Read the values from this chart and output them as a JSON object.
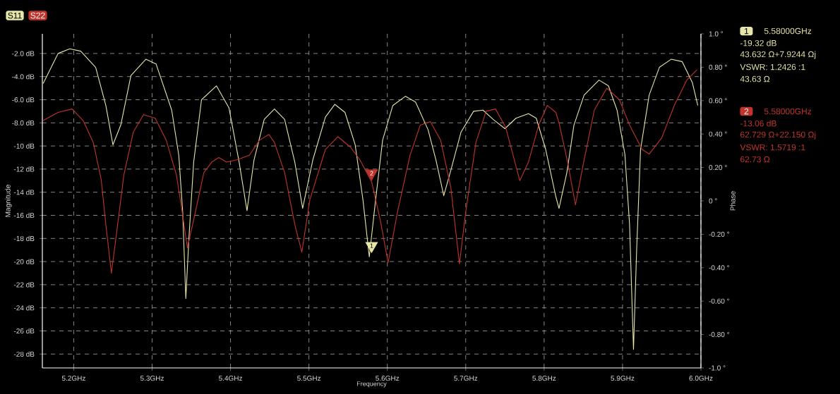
{
  "chart_data": {
    "type": "line",
    "xlabel": "Frequency",
    "ylabel": "Magnitude",
    "y2label": "Phase",
    "xlim": [
      5.16,
      6.0
    ],
    "ylim": [
      -29.2,
      -0.3
    ],
    "y2lim": [
      -1,
      1
    ],
    "xticks": [
      {
        "value": 5.2,
        "label": "5.2GHz"
      },
      {
        "value": 5.3,
        "label": "5.3GHz"
      },
      {
        "value": 5.4,
        "label": "5.4GHz"
      },
      {
        "value": 5.5,
        "label": "5.5GHz"
      },
      {
        "value": 5.6,
        "label": "5.6GHz"
      },
      {
        "value": 5.7,
        "label": "5.7GHz"
      },
      {
        "value": 5.8,
        "label": "5.8GHz"
      },
      {
        "value": 5.9,
        "label": "5.9GHz"
      },
      {
        "value": 6.0,
        "label": "6.0GHz"
      }
    ],
    "yticks": [
      {
        "value": -2,
        "label": "-2.0 dB"
      },
      {
        "value": -4,
        "label": "-4.0 dB"
      },
      {
        "value": -6,
        "label": "-6.0 dB"
      },
      {
        "value": -8,
        "label": "-8.0 dB"
      },
      {
        "value": -10,
        "label": "-10 dB"
      },
      {
        "value": -12,
        "label": "-12 dB"
      },
      {
        "value": -14,
        "label": "-14 dB"
      },
      {
        "value": -16,
        "label": "-16 dB"
      },
      {
        "value": -18,
        "label": "-18 dB"
      },
      {
        "value": -20,
        "label": "-20 dB"
      },
      {
        "value": -22,
        "label": "-22 dB"
      },
      {
        "value": -24,
        "label": "-24 dB"
      },
      {
        "value": -26,
        "label": "-26 dB"
      },
      {
        "value": -28,
        "label": "-28 dB"
      }
    ],
    "y2ticks": [
      {
        "value": 1.0,
        "label": "1.0 °"
      },
      {
        "value": 0.8,
        "label": "0.80 °"
      },
      {
        "value": 0.6,
        "label": "0.60 °"
      },
      {
        "value": 0.4,
        "label": "0.40 °"
      },
      {
        "value": 0.2,
        "label": "0.20 °"
      },
      {
        "value": 0,
        "label": "0 °"
      },
      {
        "value": -0.2,
        "label": "-0.20 °"
      },
      {
        "value": -0.4,
        "label": "-0.40 °"
      },
      {
        "value": -0.6,
        "label": "-0.60 °"
      },
      {
        "value": -0.8,
        "label": "-0.80 °"
      },
      {
        "value": -1.0,
        "label": "-1.0 °"
      }
    ],
    "grid": true,
    "legend": "top left",
    "series": [
      {
        "name": "S11",
        "color": "#e6e6a8",
        "x": [
          5.161,
          5.18,
          5.195,
          5.209,
          5.228,
          5.241,
          5.25,
          5.26,
          5.273,
          5.292,
          5.305,
          5.325,
          5.334,
          5.339,
          5.343,
          5.347,
          5.353,
          5.363,
          5.382,
          5.398,
          5.411,
          5.421,
          5.43,
          5.443,
          5.456,
          5.469,
          5.482,
          5.492,
          5.505,
          5.521,
          5.533,
          5.546,
          5.559,
          5.569,
          5.577,
          5.585,
          5.594,
          5.607,
          5.623,
          5.636,
          5.652,
          5.662,
          5.672,
          5.681,
          5.694,
          5.71,
          5.722,
          5.735,
          5.75,
          5.764,
          5.78,
          5.79,
          5.802,
          5.815,
          5.819,
          5.829,
          5.838,
          5.851,
          5.87,
          5.882,
          5.893,
          5.903,
          5.909,
          5.914,
          5.918,
          5.923,
          5.934,
          5.947,
          5.962,
          5.976,
          5.989,
          5.996
        ],
        "values": [
          -4.6,
          -2.0,
          -1.6,
          -1.8,
          -3.2,
          -6.5,
          -9.9,
          -8.2,
          -3.9,
          -2.5,
          -2.9,
          -6.9,
          -10.8,
          -15.7,
          -23.2,
          -17.9,
          -11.4,
          -6.0,
          -4.8,
          -6.7,
          -11.4,
          -15.6,
          -11.2,
          -7.7,
          -6.8,
          -7.7,
          -11.4,
          -15.4,
          -11.2,
          -7.5,
          -6.4,
          -7.1,
          -9.9,
          -14.7,
          -19.6,
          -14.7,
          -9.5,
          -6.5,
          -5.7,
          -6.2,
          -8.6,
          -11.2,
          -14.3,
          -12.1,
          -8.8,
          -7.0,
          -6.9,
          -7.7,
          -8.5,
          -7.6,
          -7.2,
          -7.6,
          -10.3,
          -14.4,
          -15.4,
          -12.3,
          -8.2,
          -5.6,
          -4.3,
          -4.8,
          -6.9,
          -10.7,
          -16.8,
          -27.6,
          -19.0,
          -10.3,
          -5.6,
          -3.2,
          -2.5,
          -2.7,
          -4.5,
          -6.5
        ]
      },
      {
        "name": "S22",
        "color": "#c0342c",
        "x": [
          5.161,
          5.18,
          5.198,
          5.212,
          5.225,
          5.235,
          5.241,
          5.248,
          5.254,
          5.264,
          5.276,
          5.289,
          5.304,
          5.318,
          5.331,
          5.337,
          5.345,
          5.353,
          5.366,
          5.376,
          5.385,
          5.395,
          5.408,
          5.424,
          5.437,
          5.449,
          5.456,
          5.469,
          5.482,
          5.491,
          5.501,
          5.521,
          5.537,
          5.553,
          5.565,
          5.58,
          5.591,
          5.601,
          5.613,
          5.629,
          5.642,
          5.655,
          5.668,
          5.681,
          5.692,
          5.7,
          5.713,
          5.726,
          5.738,
          5.751,
          5.769,
          5.78,
          5.793,
          5.804,
          5.815,
          5.819,
          5.83,
          5.84,
          5.851,
          5.864,
          5.88,
          5.896,
          5.909,
          5.925,
          5.934,
          5.95,
          5.966,
          5.982,
          5.995
        ],
        "values": [
          -7.8,
          -7.1,
          -6.8,
          -7.8,
          -9.7,
          -12.9,
          -16.8,
          -21.0,
          -17.9,
          -12.5,
          -8.8,
          -7.3,
          -7.6,
          -9.5,
          -12.5,
          -15.1,
          -18.8,
          -16.4,
          -12.3,
          -11.4,
          -11.0,
          -11.4,
          -11.2,
          -10.8,
          -9.5,
          -9.0,
          -9.7,
          -12.3,
          -16.8,
          -19.2,
          -14.7,
          -10.3,
          -9.2,
          -10.1,
          -11.2,
          -13.1,
          -16.4,
          -20.1,
          -15.7,
          -10.8,
          -8.2,
          -7.9,
          -9.5,
          -13.6,
          -20.2,
          -15.7,
          -9.7,
          -7.0,
          -6.8,
          -8.4,
          -13.0,
          -11.4,
          -8.2,
          -6.5,
          -7.1,
          -8.0,
          -11.4,
          -15.1,
          -11.2,
          -6.9,
          -5.0,
          -6.0,
          -8.2,
          -10.3,
          -10.7,
          -9.3,
          -6.5,
          -4.3,
          -3.4
        ]
      }
    ],
    "annotations": [
      {
        "text": "1",
        "x": 5.58,
        "y": -19.32
      },
      {
        "text": "2",
        "x": 5.58,
        "y": -13.06
      },
      "5.58000GHz",
      "-19.32 dB",
      "43.632 Ω+7.9244 Ωj",
      "VSWR: 1.2426 :1",
      "43.63 Ω",
      "5.58000GHz",
      "-13.06 dB",
      "62.729 Ω+22.150 Ωj",
      "VSWR: 1.5719 :1",
      "62.73 Ω"
    ]
  }
}
